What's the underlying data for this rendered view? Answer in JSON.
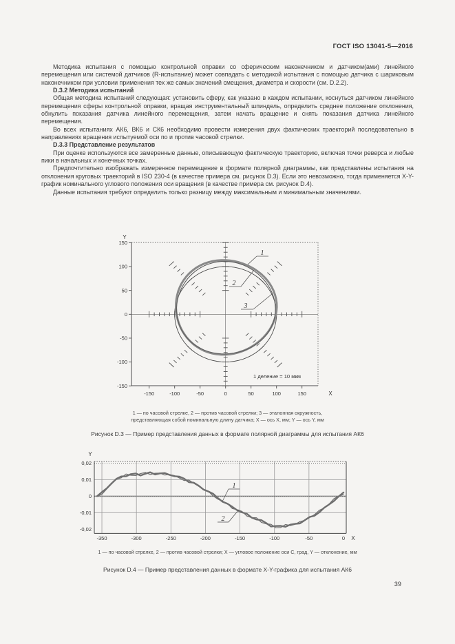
{
  "page": {
    "header": "ГОСТ ISO 13041-5—2016",
    "number": "39"
  },
  "content": {
    "p1": "Методика испытания с помощью контрольной оправки со сферическим наконечником и датчиком(ами) линейного перемещения или системой датчиков (R-испытание) может совпадать с методикой испытания с помощью датчика с шариковым наконечником при условии применения тех же самых значений смещения, диаметра и скорости (см. D.2.2).",
    "h1": "D.3.2 Методика испытаний",
    "p2": "Общая методика испытаний следующая: установить сферу, как указано в каждом испытании, коснуться датчиком линейного перемещения сферы контрольной оправки, вращая инструментальный шпиндель, определить среднее положение отклонения, обнулить показания датчика линейного перемещения, затем начать вращение и снять показания датчика линейного перемещения.",
    "p3": "Во всех испытаниях АК6, ВК6 и СК6 необходимо провести измерения двух фактических траекторий последовательно в направлениях вращения испытуемой оси по и против часовой стрелки.",
    "h2": "D.3.3 Представление результатов",
    "p4": "При оценке используются все замеренные данные, описывающую фактическую траекторию, включая точки реверса и любые пики в начальных и конечных точках.",
    "p5": "Предпочтительно изображать измеренное перемещение в формате полярной диаграммы, как представлены испытания на отклонения круговых траекторий в ISO 230-4 (в качестве примера см. рисунок D.3). Если это невозможно, тогда применяется X-Y-график номинального углового положения оси вращения (в качестве примера см. рисунок D.4).",
    "p6": "Данные испытания требуют определить только разницу между максимальным и минимальным значениями."
  },
  "figure_d3": {
    "legend_line1": "1 — по часовой стрелке, 2 — против часовой стрелки; 3 — эталонная окружность,",
    "legend_line2": "представляющая собой номинальную длину датчика; X — ось X, мм; Y — ось Y, мм",
    "caption": "Рисунок D.3 — Пример представления данных в формате полярной диаграммы для испытания АК6"
  },
  "figure_d4": {
    "legend": "1 — по часовой стрелке, 2 — против часовой стрелки; X — угловое положение оси С, град, Y — отклонение, мм",
    "caption": "Рисунок D.4 — Пример представления данных в формате X-Y-графика для испытания АК6"
  },
  "chart_data": [
    {
      "type": "polar",
      "x_axis_letter": "X",
      "y_axis_letter": "Y",
      "x_ticks": [
        -150,
        -100,
        -50,
        0,
        50,
        100,
        150
      ],
      "y_ticks": [
        150,
        100,
        50,
        0,
        -50,
        -100,
        -150
      ],
      "xlim": [
        -185,
        182
      ],
      "ylim": [
        -150,
        150
      ],
      "division_note": "1 деление = 10 мкм",
      "division_value_um": 10,
      "radial_tick_angles_deg": [
        0,
        45,
        90,
        135,
        180,
        225,
        270,
        315
      ],
      "radial_tick_radii": {
        "axis_start": 50,
        "diag_start": 60,
        "end": 150,
        "step": 10
      },
      "reference_circle": {
        "label": "3",
        "name": "эталонная окружность",
        "center": [
          0,
          0
        ],
        "radius": 100
      },
      "traces": [
        {
          "label": "1",
          "name": "по часовой стрелке",
          "center": [
            0,
            15
          ],
          "radius": 99,
          "width": 3
        },
        {
          "label": "2",
          "name": "против часовой стрелки",
          "center": [
            0,
            13
          ],
          "radius": 97,
          "width": 1.1
        }
      ],
      "callout_labels": [
        "1",
        "2",
        "3"
      ]
    },
    {
      "type": "line",
      "x_axis_letter": "X",
      "y_axis_letter": "Y",
      "x_ticks": [
        -350,
        -300,
        -250,
        -200,
        -150,
        -100,
        -50,
        0
      ],
      "y_tick_labels": [
        "0,02",
        "0,01",
        "0",
        "-0,01",
        "-0,02"
      ],
      "y_tick_values": [
        0.02,
        0.01,
        0,
        -0.01,
        -0.02
      ],
      "xlim": [
        -361,
        4
      ],
      "ylim": [
        -0.0225,
        0.021
      ],
      "callout_labels": [
        "1",
        "2"
      ],
      "x": [
        -357,
        -350,
        -343,
        -336,
        -329,
        -322,
        -315,
        -308,
        -301,
        -294,
        -287,
        -280,
        -273,
        -266,
        -259,
        -252,
        -245,
        -238,
        -231,
        -224,
        -217,
        -210,
        -203,
        -196,
        -189,
        -182,
        -175,
        -168,
        -161,
        -154,
        -147,
        -140,
        -133,
        -126,
        -119,
        -112,
        -105,
        -98,
        -91,
        -84,
        -77,
        -70,
        -63,
        -56,
        -49,
        -42,
        -35,
        -28,
        -21,
        -14,
        -7,
        0
      ],
      "series": [
        {
          "name": "1 — по часовой стрелке",
          "y": [
            0.0,
            0.002,
            0.005,
            0.008,
            0.01,
            0.012,
            0.0125,
            0.013,
            0.0135,
            0.013,
            0.0135,
            0.014,
            0.0135,
            0.014,
            0.0135,
            0.013,
            0.0125,
            0.0115,
            0.0105,
            0.009,
            0.008,
            0.006,
            0.0045,
            0.003,
            0.001,
            -0.001,
            -0.003,
            -0.005,
            -0.0065,
            -0.008,
            -0.01,
            -0.011,
            -0.0125,
            -0.014,
            -0.015,
            -0.016,
            -0.018,
            -0.0185,
            -0.018,
            -0.018,
            -0.0175,
            -0.017,
            -0.016,
            -0.0145,
            -0.013,
            -0.0115,
            -0.0095,
            -0.0075,
            -0.005,
            -0.0025,
            -0.0005,
            0.002
          ]
        },
        {
          "name": "2 — против часовой стрелки",
          "y": [
            -0.0005,
            0.0015,
            0.0045,
            0.0075,
            0.0105,
            0.0115,
            0.013,
            0.0125,
            0.013,
            0.0135,
            0.014,
            0.0135,
            0.014,
            0.0135,
            0.013,
            0.0135,
            0.012,
            0.011,
            0.01,
            0.0095,
            0.0075,
            0.0065,
            0.004,
            0.0025,
            0.0005,
            -0.0015,
            -0.0035,
            -0.0045,
            -0.007,
            -0.0085,
            -0.0095,
            -0.0115,
            -0.013,
            -0.0135,
            -0.0155,
            -0.0165,
            -0.0175,
            -0.019,
            -0.0185,
            -0.0175,
            -0.018,
            -0.0165,
            -0.0155,
            -0.015,
            -0.0125,
            -0.011,
            -0.009,
            -0.007,
            -0.0045,
            -0.002,
            0.0,
            0.0015
          ]
        }
      ]
    }
  ]
}
